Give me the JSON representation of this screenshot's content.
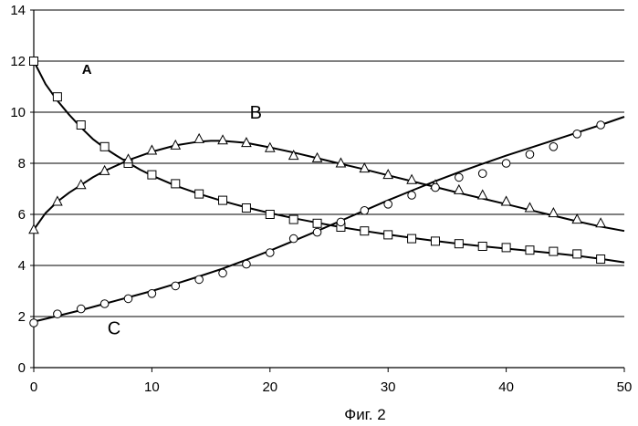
{
  "caption": "Фиг. 2",
  "chart_data": {
    "type": "scatter",
    "title": "",
    "xlabel": "",
    "ylabel": "",
    "xlim": [
      0,
      50
    ],
    "ylim": [
      0,
      14
    ],
    "x_ticks": [
      0,
      10,
      20,
      30,
      40,
      50
    ],
    "y_ticks": [
      0,
      2,
      4,
      6,
      8,
      10,
      12,
      14
    ],
    "grid": "horizontal",
    "legend": "none",
    "series": [
      {
        "name": "A",
        "marker": "square",
        "points": [
          [
            0,
            12.0
          ],
          [
            2,
            10.6
          ],
          [
            4,
            9.5
          ],
          [
            6,
            8.65
          ],
          [
            8,
            8.0
          ],
          [
            10,
            7.55
          ],
          [
            12,
            7.2
          ],
          [
            14,
            6.8
          ],
          [
            16,
            6.55
          ],
          [
            18,
            6.25
          ],
          [
            20,
            6.0
          ],
          [
            22,
            5.8
          ],
          [
            24,
            5.65
          ],
          [
            26,
            5.5
          ],
          [
            28,
            5.35
          ],
          [
            30,
            5.2
          ],
          [
            32,
            5.05
          ],
          [
            34,
            4.95
          ],
          [
            36,
            4.85
          ],
          [
            38,
            4.75
          ],
          [
            40,
            4.7
          ],
          [
            42,
            4.6
          ],
          [
            44,
            4.55
          ],
          [
            46,
            4.45
          ],
          [
            48,
            4.25
          ]
        ],
        "curve": [
          [
            0,
            12.0
          ],
          [
            1,
            11.1
          ],
          [
            2,
            10.45
          ],
          [
            3,
            9.9
          ],
          [
            4,
            9.4
          ],
          [
            5,
            8.95
          ],
          [
            6,
            8.6
          ],
          [
            7,
            8.3
          ],
          [
            8,
            8.02
          ],
          [
            9,
            7.75
          ],
          [
            10,
            7.52
          ],
          [
            12,
            7.12
          ],
          [
            14,
            6.8
          ],
          [
            16,
            6.52
          ],
          [
            18,
            6.27
          ],
          [
            20,
            6.05
          ],
          [
            22,
            5.85
          ],
          [
            24,
            5.67
          ],
          [
            26,
            5.5
          ],
          [
            28,
            5.35
          ],
          [
            30,
            5.21
          ],
          [
            32,
            5.08
          ],
          [
            34,
            4.96
          ],
          [
            36,
            4.85
          ],
          [
            38,
            4.75
          ],
          [
            40,
            4.66
          ],
          [
            42,
            4.57
          ],
          [
            44,
            4.48
          ],
          [
            46,
            4.38
          ],
          [
            48,
            4.26
          ],
          [
            50,
            4.12
          ]
        ]
      },
      {
        "name": "B",
        "marker": "triangle",
        "points": [
          [
            0,
            5.4
          ],
          [
            2,
            6.5
          ],
          [
            4,
            7.15
          ],
          [
            6,
            7.7
          ],
          [
            8,
            8.15
          ],
          [
            10,
            8.5
          ],
          [
            12,
            8.7
          ],
          [
            14,
            8.95
          ],
          [
            16,
            8.9
          ],
          [
            18,
            8.8
          ],
          [
            20,
            8.6
          ],
          [
            22,
            8.3
          ],
          [
            24,
            8.2
          ],
          [
            26,
            8.0
          ],
          [
            28,
            7.8
          ],
          [
            30,
            7.55
          ],
          [
            32,
            7.35
          ],
          [
            34,
            7.15
          ],
          [
            36,
            6.95
          ],
          [
            38,
            6.75
          ],
          [
            40,
            6.5
          ],
          [
            42,
            6.25
          ],
          [
            44,
            6.05
          ],
          [
            46,
            5.8
          ],
          [
            48,
            5.65
          ]
        ],
        "curve": [
          [
            0,
            5.4
          ],
          [
            1,
            6.05
          ],
          [
            2,
            6.5
          ],
          [
            3,
            6.85
          ],
          [
            4,
            7.15
          ],
          [
            5,
            7.45
          ],
          [
            6,
            7.7
          ],
          [
            8,
            8.12
          ],
          [
            10,
            8.45
          ],
          [
            12,
            8.7
          ],
          [
            14,
            8.85
          ],
          [
            15,
            8.88
          ],
          [
            16,
            8.88
          ],
          [
            18,
            8.8
          ],
          [
            20,
            8.62
          ],
          [
            22,
            8.42
          ],
          [
            24,
            8.2
          ],
          [
            26,
            7.98
          ],
          [
            28,
            7.76
          ],
          [
            30,
            7.53
          ],
          [
            32,
            7.3
          ],
          [
            34,
            7.07
          ],
          [
            36,
            6.84
          ],
          [
            38,
            6.62
          ],
          [
            40,
            6.4
          ],
          [
            42,
            6.17
          ],
          [
            44,
            5.95
          ],
          [
            46,
            5.73
          ],
          [
            48,
            5.52
          ],
          [
            50,
            5.35
          ]
        ]
      },
      {
        "name": "C",
        "marker": "circle",
        "points": [
          [
            0,
            1.75
          ],
          [
            2,
            2.1
          ],
          [
            4,
            2.3
          ],
          [
            6,
            2.5
          ],
          [
            8,
            2.7
          ],
          [
            10,
            2.9
          ],
          [
            12,
            3.2
          ],
          [
            14,
            3.45
          ],
          [
            16,
            3.7
          ],
          [
            18,
            4.05
          ],
          [
            20,
            4.5
          ],
          [
            22,
            5.05
          ],
          [
            24,
            5.3
          ],
          [
            26,
            5.7
          ],
          [
            28,
            6.15
          ],
          [
            30,
            6.4
          ],
          [
            32,
            6.75
          ],
          [
            34,
            7.05
          ],
          [
            36,
            7.45
          ],
          [
            38,
            7.6
          ],
          [
            40,
            8.0
          ],
          [
            42,
            8.35
          ],
          [
            44,
            8.65
          ],
          [
            46,
            9.15
          ],
          [
            48,
            9.5
          ]
        ],
        "curve": [
          [
            0,
            1.8
          ],
          [
            2,
            2.02
          ],
          [
            4,
            2.25
          ],
          [
            6,
            2.5
          ],
          [
            8,
            2.75
          ],
          [
            10,
            3.0
          ],
          [
            12,
            3.28
          ],
          [
            14,
            3.57
          ],
          [
            16,
            3.88
          ],
          [
            18,
            4.22
          ],
          [
            20,
            4.58
          ],
          [
            22,
            4.96
          ],
          [
            24,
            5.35
          ],
          [
            26,
            5.75
          ],
          [
            28,
            6.15
          ],
          [
            30,
            6.55
          ],
          [
            32,
            6.93
          ],
          [
            34,
            7.3
          ],
          [
            36,
            7.65
          ],
          [
            38,
            7.98
          ],
          [
            40,
            8.3
          ],
          [
            42,
            8.6
          ],
          [
            44,
            8.9
          ],
          [
            46,
            9.2
          ],
          [
            48,
            9.5
          ],
          [
            50,
            9.82
          ]
        ]
      }
    ],
    "annotations": [
      {
        "text": "A",
        "x": 4.5,
        "y": 11.5,
        "bold": true
      },
      {
        "text": "B",
        "x": 18.8,
        "y": 9.75,
        "bold": false
      },
      {
        "text": "C",
        "x": 6.8,
        "y": 1.3,
        "bold": false
      }
    ]
  }
}
